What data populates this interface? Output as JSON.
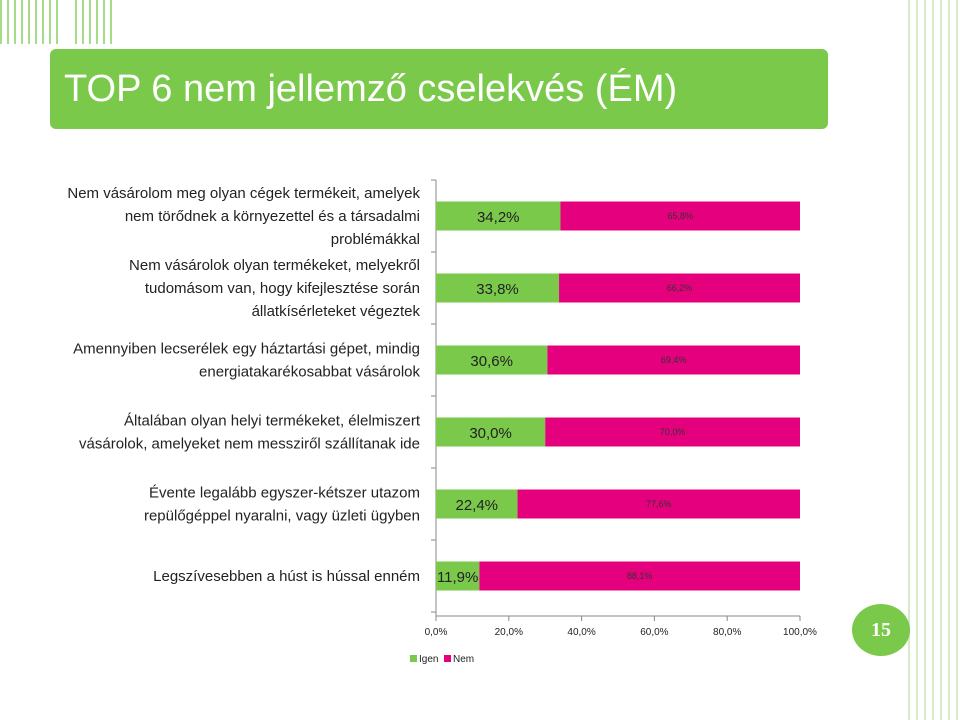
{
  "slide": {
    "title": "TOP 6 nem jellemző cselekvés (ÉM)",
    "page_number": "15",
    "accent_color": "#7ac94b"
  },
  "chart_data": {
    "type": "bar",
    "orientation": "horizontal",
    "stacked": true,
    "categories": [
      [
        "Nem vásárolom meg olyan cégek termékeit, amelyek",
        "nem törődnek a környezettel és a társadalmi",
        "problémákkal"
      ],
      [
        "Nem vásárolok olyan termékeket, melyekről",
        "tudomásom van, hogy kifejlesztése során",
        "állatkísérleteket végeztek"
      ],
      [
        "Amennyiben lecserélek egy háztartási gépet, mindig",
        "energiatakarékosabbat vásárolok"
      ],
      [
        "Általában olyan helyi termékeket, élelmiszert",
        "vásárolok, amelyeket nem messziről szállítanak ide"
      ],
      [
        "Évente legalább egyszer-kétszer utazom",
        "repülőgéppel nyaralni, vagy üzleti ügyben"
      ],
      [
        "Legszívesebben a húst is hússal enném"
      ]
    ],
    "series": [
      {
        "name": "Igen",
        "color": "#7ac94b",
        "values": [
          34.2,
          33.8,
          30.6,
          30.0,
          22.4,
          11.9
        ],
        "labels": [
          "34,2%",
          "33,8%",
          "30,6%",
          "30,0%",
          "22,4%",
          "11,9%"
        ]
      },
      {
        "name": "Nem",
        "color": "#e5007e",
        "values": [
          65.8,
          66.2,
          69.4,
          70.0,
          77.6,
          88.1
        ],
        "labels": [
          "65,8%",
          "66,2%",
          "69,4%",
          "70,0%",
          "77,6%",
          "88,1%"
        ]
      }
    ],
    "x_ticks": [
      "0,0%",
      "20,0%",
      "40,0%",
      "60,0%",
      "80,0%",
      "100,0%"
    ],
    "xlim": [
      0,
      100
    ],
    "grid": false,
    "legend_position": "bottom"
  }
}
